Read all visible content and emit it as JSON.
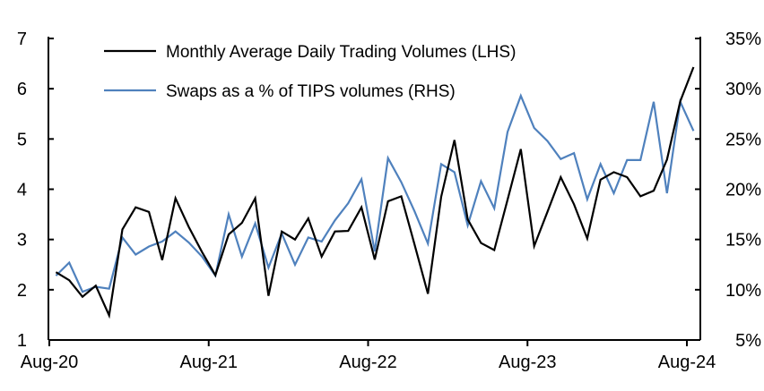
{
  "chart_data": {
    "type": "line",
    "title": "",
    "x": [
      "Aug-20",
      "Sep-20",
      "Oct-20",
      "Nov-20",
      "Dec-20",
      "Jan-21",
      "Feb-21",
      "Mar-21",
      "Apr-21",
      "May-21",
      "Jun-21",
      "Jul-21",
      "Aug-21",
      "Sep-21",
      "Oct-21",
      "Nov-21",
      "Dec-21",
      "Jan-22",
      "Feb-22",
      "Mar-22",
      "Apr-22",
      "May-22",
      "Jun-22",
      "Jul-22",
      "Aug-22",
      "Sep-22",
      "Oct-22",
      "Nov-22",
      "Dec-22",
      "Jan-23",
      "Feb-23",
      "Mar-23",
      "Apr-23",
      "May-23",
      "Jun-23",
      "Jul-23",
      "Aug-23",
      "Sep-23",
      "Oct-23",
      "Nov-23",
      "Dec-23",
      "Jan-24",
      "Feb-24",
      "Mar-24",
      "Apr-24",
      "May-24",
      "Jun-24",
      "Jul-24",
      "Aug-24"
    ],
    "x_tick_labels": [
      "Aug-20",
      "Aug-21",
      "Aug-22",
      "Aug-23",
      "Aug-24"
    ],
    "y_left": {
      "ylim": [
        1,
        7
      ],
      "ticks": [
        "1",
        "2",
        "3",
        "4",
        "5",
        "6",
        "7"
      ]
    },
    "y_right": {
      "ylim": [
        5,
        35
      ],
      "ticks": [
        "5%",
        "10%",
        "15%",
        "20%",
        "25%",
        "30%",
        "35%"
      ]
    },
    "grid": false,
    "legend_placement": "top-left",
    "series": [
      {
        "name": "Monthly Average Daily Trading Volumes (LHS)",
        "axis": "left",
        "color": "#000000",
        "values": [
          2.35,
          2.19,
          1.86,
          2.08,
          1.49,
          3.2,
          3.64,
          3.55,
          2.59,
          3.82,
          3.25,
          2.75,
          2.29,
          3.1,
          3.33,
          3.82,
          1.88,
          3.16,
          3.0,
          3.42,
          2.66,
          3.16,
          3.17,
          3.64,
          2.6,
          3.76,
          3.86,
          2.9,
          1.92,
          3.85,
          4.98,
          3.4,
          2.93,
          2.79,
          3.79,
          4.8,
          2.87,
          3.55,
          4.24,
          3.7,
          3.02,
          4.19,
          4.34,
          4.24,
          3.86,
          3.97,
          4.59,
          5.75,
          6.43
        ]
      },
      {
        "name": "Swaps as a % of TIPS volumes (RHS)",
        "axis": "right",
        "color": "#4f81bd",
        "values": [
          11.4,
          12.7,
          9.8,
          10.3,
          10.1,
          15.2,
          13.5,
          14.3,
          14.8,
          15.8,
          14.7,
          13.3,
          11.4,
          17.5,
          13.3,
          16.6,
          12.2,
          15.6,
          12.5,
          15.2,
          14.8,
          16.9,
          18.6,
          21.0,
          13.8,
          23.1,
          20.7,
          17.8,
          14.6,
          22.5,
          21.7,
          16.4,
          20.8,
          18.1,
          25.7,
          29.3,
          26.1,
          24.8,
          23.0,
          23.6,
          19.0,
          22.5,
          19.6,
          22.9,
          22.9,
          28.7,
          19.6,
          28.7,
          25.8
        ]
      }
    ]
  }
}
